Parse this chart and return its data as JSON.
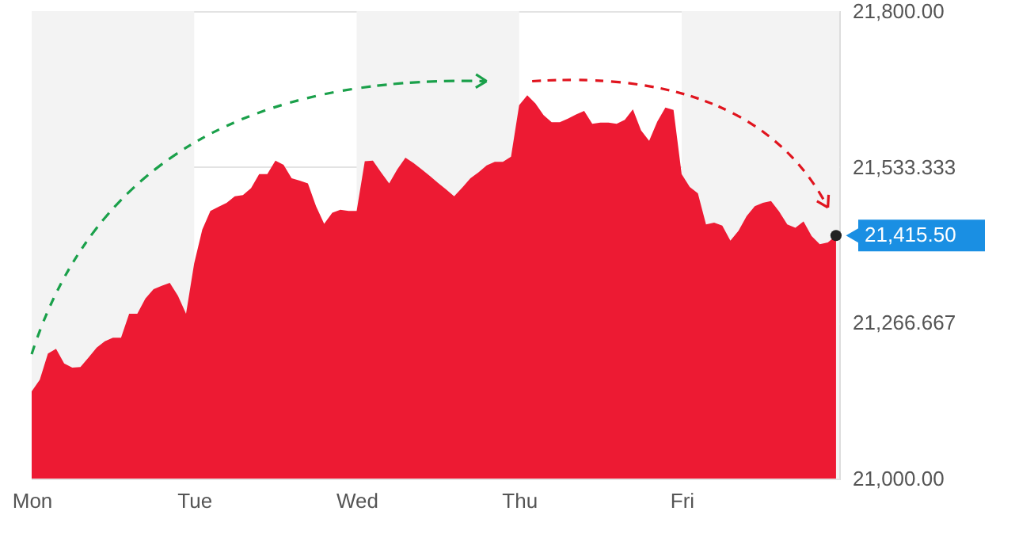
{
  "chart_data": {
    "type": "area",
    "categories": [
      "Mon",
      null,
      null,
      null,
      null,
      null,
      null,
      null,
      null,
      null,
      null,
      null,
      null,
      null,
      null,
      null,
      null,
      null,
      null,
      null,
      "Tue",
      null,
      null,
      null,
      null,
      null,
      null,
      null,
      null,
      null,
      null,
      null,
      null,
      null,
      null,
      null,
      null,
      null,
      null,
      null,
      "Wed",
      null,
      null,
      null,
      null,
      null,
      null,
      null,
      null,
      null,
      null,
      null,
      null,
      null,
      null,
      null,
      null,
      null,
      null,
      null,
      "Thu",
      null,
      null,
      null,
      null,
      null,
      null,
      null,
      null,
      null,
      null,
      null,
      null,
      null,
      null,
      null,
      null,
      null,
      null,
      null,
      "Fri",
      null,
      null,
      null,
      null,
      null,
      null,
      null,
      null,
      null,
      null,
      null,
      null,
      null,
      null,
      null,
      null,
      null,
      null,
      null
    ],
    "series": [
      {
        "color": "#ed1a33",
        "values": [
          21149,
          21169,
          21214,
          21222,
          21197,
          21190,
          21191,
          21207,
          21224,
          21235,
          21241,
          21241,
          21282,
          21282,
          21308,
          21324,
          21330,
          21335,
          21313,
          21282,
          21368,
          21426,
          21458,
          21465,
          21472,
          21483,
          21485,
          21497,
          21521,
          21521,
          21544,
          21537,
          21514,
          21510,
          21505,
          21466,
          21436,
          21455,
          21460,
          21458,
          21458,
          21543,
          21544,
          21524,
          21505,
          21529,
          21549,
          21540,
          21529,
          21518,
          21506,
          21495,
          21483,
          21498,
          21514,
          21524,
          21536,
          21542,
          21542,
          21551,
          21639,
          21656,
          21642,
          21622,
          21610,
          21610,
          21616,
          21623,
          21629,
          21607,
          21609,
          21609,
          21607,
          21614,
          21632,
          21596,
          21578,
          21611,
          21635,
          21631,
          21521,
          21499,
          21488,
          21435,
          21438,
          21433,
          21407,
          21424,
          21449,
          21466,
          21472,
          21475,
          21457,
          21435,
          21429,
          21440,
          21415,
          21401,
          21404,
          21416
        ]
      }
    ],
    "ylim": [
      21000,
      21800
    ],
    "yticks": [
      {
        "value": 21000,
        "label": "21,000.00"
      },
      {
        "value": 21266.667,
        "label": "21,266.667"
      },
      {
        "value": 21533.333,
        "label": "21,533.333"
      },
      {
        "value": 21800,
        "label": "21,800.00"
      }
    ],
    "grid": "y",
    "annotations": [
      "21,415.50"
    ]
  }
}
